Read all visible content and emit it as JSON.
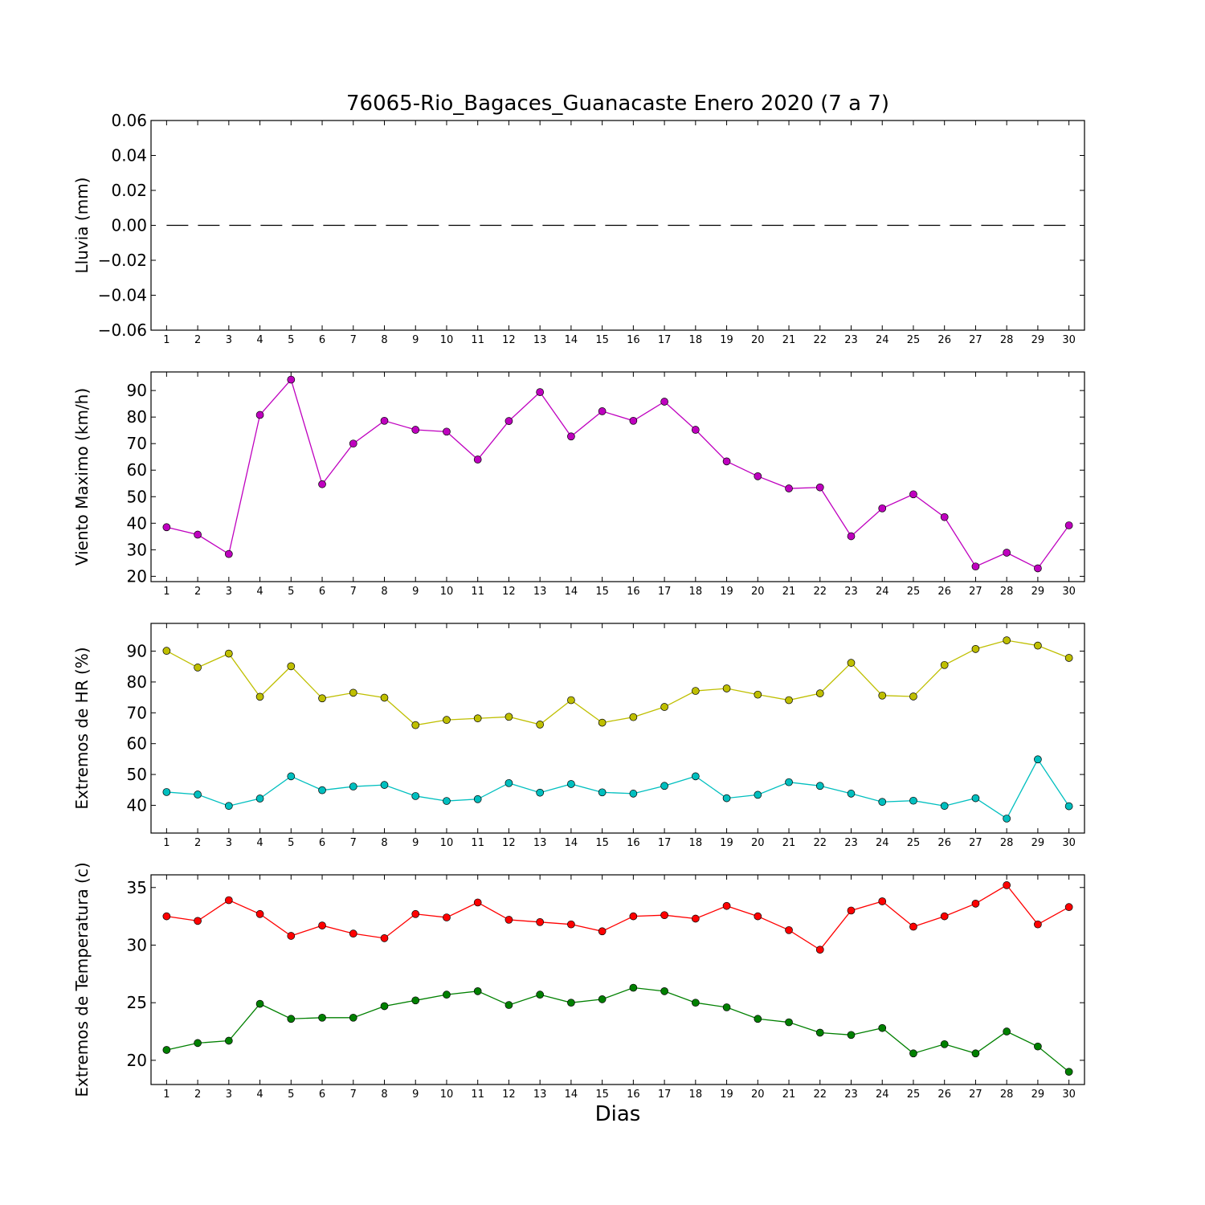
{
  "title": "76065-Rio_Bagaces_Guanacaste Enero 2020  (7 a 7)",
  "xlabel": "Dias",
  "chart_data": [
    {
      "type": "line",
      "ylabel": "Lluvia (mm)",
      "ylim": [
        -0.06,
        0.06
      ],
      "yticks": [
        0.06,
        0.04,
        0.02,
        0.0,
        -0.02,
        -0.04,
        -0.06
      ],
      "ytick_labels": [
        "0.06",
        "0.04",
        "0.02",
        "0.00",
        "−0.02",
        "−0.04",
        "−0.06"
      ],
      "x": [
        1,
        2,
        3,
        4,
        5,
        6,
        7,
        8,
        9,
        10,
        11,
        12,
        13,
        14,
        15,
        16,
        17,
        18,
        19,
        20,
        21,
        22,
        23,
        24,
        25,
        26,
        27,
        28,
        29,
        30
      ],
      "series": [
        {
          "color": "#000000",
          "style": "dashed",
          "marker": false,
          "values": [
            0,
            0,
            0,
            0,
            0,
            0,
            0,
            0,
            0,
            0,
            0,
            0,
            0,
            0,
            0,
            0,
            0,
            0,
            0,
            0,
            0,
            0,
            0,
            0,
            0,
            0,
            0,
            0,
            0,
            0
          ]
        }
      ]
    },
    {
      "type": "line",
      "ylabel": "Viento Maximo (km/h)",
      "ylim": [
        18,
        97
      ],
      "yticks": [
        20,
        30,
        40,
        50,
        60,
        70,
        80,
        90
      ],
      "ytick_labels": [
        "20",
        "30",
        "40",
        "50",
        "60",
        "70",
        "80",
        "90"
      ],
      "x": [
        1,
        2,
        3,
        4,
        5,
        6,
        7,
        8,
        9,
        10,
        11,
        12,
        13,
        14,
        15,
        16,
        17,
        18,
        19,
        20,
        21,
        22,
        23,
        24,
        25,
        26,
        27,
        28,
        29,
        30
      ],
      "series": [
        {
          "color": "#bf00bf",
          "style": "solid",
          "marker": true,
          "values": [
            38.5,
            35.7,
            28.4,
            80.8,
            94.1,
            54.7,
            70.0,
            78.6,
            75.2,
            74.5,
            64.0,
            78.5,
            89.4,
            72.7,
            82.2,
            78.6,
            85.8,
            75.2,
            63.3,
            57.7,
            53.1,
            53.5,
            35.1,
            45.6,
            50.9,
            42.3,
            23.7,
            28.9,
            23.0,
            39.2
          ]
        }
      ]
    },
    {
      "type": "line",
      "ylabel": "Extremos de HR (%)",
      "ylim": [
        31,
        99
      ],
      "yticks": [
        40,
        50,
        60,
        70,
        80,
        90
      ],
      "ytick_labels": [
        "40",
        "50",
        "60",
        "70",
        "80",
        "90"
      ],
      "x": [
        1,
        2,
        3,
        4,
        5,
        6,
        7,
        8,
        9,
        10,
        11,
        12,
        13,
        14,
        15,
        16,
        17,
        18,
        19,
        20,
        21,
        22,
        23,
        24,
        25,
        26,
        27,
        28,
        29,
        30
      ],
      "series": [
        {
          "color": "#bfbf00",
          "style": "solid",
          "marker": true,
          "values": [
            90.1,
            84.7,
            89.2,
            75.2,
            85.1,
            74.7,
            76.5,
            74.9,
            66.0,
            67.7,
            68.2,
            68.7,
            66.2,
            74.1,
            66.8,
            68.6,
            71.9,
            77.1,
            77.9,
            75.9,
            74.1,
            76.3,
            86.2,
            75.6,
            75.3,
            85.5,
            90.7,
            93.5,
            91.8,
            87.8
          ]
        },
        {
          "color": "#00bfbf",
          "style": "solid",
          "marker": true,
          "values": [
            44.3,
            43.5,
            39.8,
            42.2,
            49.4,
            44.9,
            46.1,
            46.6,
            43.0,
            41.4,
            42.0,
            47.2,
            44.1,
            46.9,
            44.2,
            43.8,
            46.3,
            49.4,
            42.3,
            43.4,
            47.5,
            46.3,
            43.8,
            41.1,
            41.5,
            39.8,
            42.3,
            35.7,
            54.9,
            39.7
          ]
        }
      ]
    },
    {
      "type": "line",
      "ylabel": "Extremos de Temperatura (c)",
      "ylim": [
        17.9,
        36.1
      ],
      "yticks": [
        20,
        25,
        30,
        35
      ],
      "ytick_labels": [
        "20",
        "25",
        "30",
        "35"
      ],
      "x": [
        1,
        2,
        3,
        4,
        5,
        6,
        7,
        8,
        9,
        10,
        11,
        12,
        13,
        14,
        15,
        16,
        17,
        18,
        19,
        20,
        21,
        22,
        23,
        24,
        25,
        26,
        27,
        28,
        29,
        30
      ],
      "series": [
        {
          "color": "#ff0000",
          "style": "solid",
          "marker": true,
          "values": [
            32.5,
            32.1,
            33.9,
            32.7,
            30.8,
            31.7,
            31.0,
            30.6,
            32.7,
            32.4,
            33.7,
            32.2,
            32.0,
            31.8,
            31.2,
            32.5,
            32.6,
            32.3,
            33.4,
            32.5,
            31.3,
            29.6,
            33.0,
            33.8,
            31.6,
            32.5,
            33.6,
            35.2,
            31.8,
            33.3
          ]
        },
        {
          "color": "#008000",
          "style": "solid",
          "marker": true,
          "values": [
            20.9,
            21.5,
            21.7,
            24.9,
            23.6,
            23.7,
            23.7,
            24.7,
            25.2,
            25.7,
            26.0,
            24.8,
            25.7,
            25.0,
            25.3,
            26.3,
            26.0,
            25.0,
            24.6,
            23.6,
            23.3,
            22.4,
            22.2,
            22.8,
            20.6,
            21.4,
            20.6,
            22.5,
            21.2,
            19.0
          ]
        }
      ]
    }
  ]
}
